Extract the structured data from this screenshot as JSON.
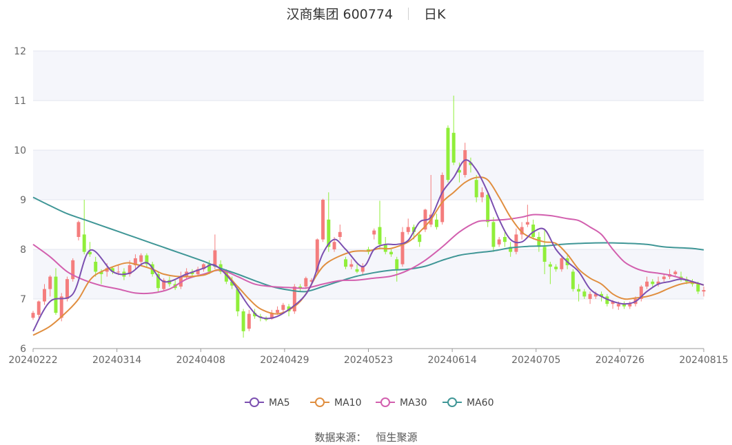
{
  "header": {
    "title": "汉商集团 600774",
    "period": "日K"
  },
  "source": {
    "label": "数据来源：",
    "provider": "恒生聚源"
  },
  "colors": {
    "up": "#f47d7d",
    "down": "#90ee3a",
    "ma5": "#7b4fb0",
    "ma10": "#e08e3f",
    "ma30": "#d25fae",
    "ma60": "#3f9696",
    "band": "#f5f6fb",
    "grid": "#e3e6ef",
    "axis": "#666666"
  },
  "chart_data": {
    "type": "candlestick",
    "ylim": [
      6,
      12
    ],
    "yticks": [
      "6",
      "7",
      "8",
      "9",
      "10",
      "11",
      "12"
    ],
    "date_labels": [
      "20240222",
      "20240314",
      "20240408",
      "20240429",
      "20240523",
      "20240614",
      "20240705",
      "20240726",
      "20240815"
    ],
    "legend": [
      {
        "key": "ma5",
        "label": "MA5"
      },
      {
        "key": "ma10",
        "label": "MA10"
      },
      {
        "key": "ma30",
        "label": "MA30"
      },
      {
        "key": "ma60",
        "label": "MA60"
      }
    ],
    "candles": [
      [
        6.62,
        6.72,
        6.58,
        6.76
      ],
      [
        6.68,
        6.95,
        6.62,
        6.97
      ],
      [
        6.95,
        7.2,
        6.88,
        7.3
      ],
      [
        7.2,
        7.45,
        7.05,
        7.48
      ],
      [
        7.45,
        6.72,
        6.68,
        7.62
      ],
      [
        6.62,
        7.05,
        6.55,
        7.12
      ],
      [
        7.0,
        7.4,
        6.95,
        7.45
      ],
      [
        7.4,
        7.78,
        7.35,
        7.82
      ],
      [
        8.25,
        8.55,
        8.18,
        8.58
      ],
      [
        8.3,
        7.95,
        7.9,
        9.0
      ],
      [
        7.95,
        7.9,
        7.85,
        8.15
      ],
      [
        7.75,
        7.55,
        7.45,
        7.85
      ],
      [
        7.55,
        7.5,
        7.3,
        7.6
      ],
      [
        7.55,
        7.62,
        7.45,
        7.72
      ],
      [
        7.62,
        7.55,
        7.5,
        7.65
      ],
      [
        7.55,
        7.55,
        7.48,
        7.68
      ],
      [
        7.55,
        7.45,
        7.38,
        7.62
      ],
      [
        7.5,
        7.68,
        7.45,
        7.78
      ],
      [
        7.68,
        7.82,
        7.6,
        7.9
      ],
      [
        7.75,
        7.88,
        7.7,
        7.92
      ],
      [
        7.88,
        7.7,
        7.65,
        7.92
      ],
      [
        7.7,
        7.5,
        7.45,
        7.75
      ],
      [
        7.5,
        7.22,
        7.15,
        7.55
      ],
      [
        7.2,
        7.38,
        7.15,
        7.42
      ],
      [
        7.38,
        7.3,
        7.25,
        7.45
      ],
      [
        7.3,
        7.22,
        7.18,
        7.38
      ],
      [
        7.25,
        7.45,
        7.2,
        7.55
      ],
      [
        7.45,
        7.55,
        7.4,
        7.62
      ],
      [
        7.55,
        7.5,
        7.45,
        7.6
      ],
      [
        7.5,
        7.6,
        7.45,
        7.65
      ],
      [
        7.6,
        7.7,
        7.55,
        7.72
      ],
      [
        7.7,
        7.55,
        7.5,
        7.78
      ],
      [
        7.65,
        7.98,
        7.6,
        8.3
      ],
      [
        7.7,
        7.55,
        7.5,
        7.78
      ],
      [
        7.55,
        7.35,
        7.3,
        7.6
      ],
      [
        7.35,
        7.27,
        7.2,
        7.45
      ],
      [
        7.2,
        6.75,
        6.65,
        7.25
      ],
      [
        6.75,
        6.35,
        6.22,
        6.8
      ],
      [
        6.4,
        6.7,
        6.35,
        6.78
      ],
      [
        6.72,
        6.65,
        6.6,
        6.8
      ],
      [
        6.65,
        6.62,
        6.55,
        6.7
      ],
      [
        6.62,
        6.58,
        6.55,
        6.65
      ],
      [
        6.6,
        6.72,
        6.58,
        6.78
      ],
      [
        6.72,
        6.78,
        6.68,
        6.85
      ],
      [
        6.78,
        6.88,
        6.72,
        6.92
      ],
      [
        6.85,
        6.75,
        6.65,
        6.9
      ],
      [
        6.75,
        7.25,
        6.7,
        7.3
      ],
      [
        7.25,
        7.22,
        7.15,
        7.3
      ],
      [
        7.25,
        7.42,
        7.2,
        7.45
      ],
      [
        7.35,
        7.38,
        7.3,
        7.42
      ],
      [
        7.55,
        8.2,
        7.5,
        8.22
      ],
      [
        8.2,
        9.0,
        8.15,
        9.02
      ],
      [
        8.6,
        8.05,
        7.95,
        9.15
      ],
      [
        8.0,
        8.15,
        7.95,
        8.25
      ],
      [
        8.25,
        8.35,
        8.18,
        8.5
      ],
      [
        7.8,
        7.65,
        7.6,
        7.85
      ],
      [
        7.65,
        7.7,
        7.6,
        7.8
      ],
      [
        7.6,
        7.55,
        7.52,
        7.7
      ],
      [
        7.55,
        7.65,
        7.5,
        7.72
      ],
      [
        8.0,
        7.95,
        7.9,
        8.05
      ],
      [
        8.3,
        8.38,
        8.2,
        8.42
      ],
      [
        8.45,
        8.1,
        8.0,
        8.98
      ],
      [
        8.1,
        7.95,
        7.9,
        8.25
      ],
      [
        7.95,
        7.9,
        7.85,
        8.0
      ],
      [
        7.8,
        7.6,
        7.35,
        7.85
      ],
      [
        7.7,
        8.35,
        7.65,
        8.45
      ],
      [
        8.35,
        8.45,
        8.3,
        8.62
      ],
      [
        8.45,
        8.35,
        8.2,
        8.5
      ],
      [
        8.3,
        8.15,
        8.05,
        8.35
      ],
      [
        8.4,
        8.8,
        8.35,
        8.82
      ],
      [
        8.5,
        8.7,
        8.45,
        9.5
      ],
      [
        8.6,
        8.45,
        8.4,
        8.72
      ],
      [
        8.55,
        9.5,
        8.5,
        9.55
      ],
      [
        10.45,
        9.4,
        9.35,
        10.5
      ],
      [
        10.35,
        9.75,
        9.7,
        11.1
      ],
      [
        9.6,
        9.55,
        9.35,
        9.75
      ],
      [
        9.5,
        10.0,
        9.45,
        10.15
      ],
      [
        9.75,
        9.7,
        9.55,
        9.85
      ],
      [
        9.4,
        9.05,
        8.95,
        9.5
      ],
      [
        9.05,
        9.15,
        8.95,
        9.25
      ],
      [
        9.1,
        8.55,
        8.45,
        9.15
      ],
      [
        8.55,
        8.05,
        7.95,
        8.65
      ],
      [
        8.1,
        8.2,
        8.05,
        8.25
      ],
      [
        8.25,
        8.15,
        8.05,
        8.35
      ],
      [
        8.05,
        7.95,
        7.85,
        8.15
      ],
      [
        7.95,
        8.3,
        7.9,
        8.42
      ],
      [
        8.3,
        8.45,
        8.2,
        8.55
      ],
      [
        8.5,
        8.55,
        8.45,
        8.9
      ],
      [
        8.5,
        8.25,
        8.2,
        8.6
      ],
      [
        8.25,
        8.05,
        7.95,
        8.35
      ],
      [
        8.05,
        7.75,
        7.5,
        8.4
      ],
      [
        7.7,
        7.65,
        7.3,
        7.75
      ],
      [
        7.65,
        7.6,
        7.55,
        7.7
      ],
      [
        7.6,
        7.82,
        7.55,
        7.85
      ],
      [
        7.82,
        7.68,
        7.6,
        7.88
      ],
      [
        7.55,
        7.2,
        7.15,
        7.6
      ],
      [
        7.2,
        7.15,
        6.95,
        7.3
      ],
      [
        7.15,
        7.05,
        7.0,
        7.2
      ],
      [
        7.0,
        7.1,
        6.9,
        7.15
      ],
      [
        7.05,
        7.1,
        7.0,
        7.15
      ],
      [
        7.1,
        7.05,
        6.95,
        7.15
      ],
      [
        7.05,
        6.9,
        6.85,
        7.1
      ],
      [
        6.9,
        6.95,
        6.8,
        6.98
      ],
      [
        6.85,
        6.9,
        6.78,
        6.95
      ],
      [
        6.9,
        6.85,
        6.8,
        6.95
      ],
      [
        6.85,
        6.9,
        6.8,
        6.95
      ],
      [
        6.9,
        7.0,
        6.85,
        7.05
      ],
      [
        7.0,
        7.25,
        6.95,
        7.28
      ],
      [
        7.25,
        7.35,
        7.2,
        7.45
      ],
      [
        7.35,
        7.3,
        7.25,
        7.4
      ],
      [
        7.3,
        7.35,
        7.25,
        7.45
      ],
      [
        7.4,
        7.45,
        7.35,
        7.5
      ],
      [
        7.45,
        7.5,
        7.4,
        7.6
      ],
      [
        7.5,
        7.55,
        7.45,
        7.58
      ],
      [
        7.45,
        7.4,
        7.35,
        7.55
      ],
      [
        7.4,
        7.35,
        7.3,
        7.45
      ],
      [
        7.35,
        7.3,
        7.25,
        7.4
      ],
      [
        7.3,
        7.15,
        7.1,
        7.35
      ],
      [
        7.15,
        7.18,
        7.05,
        7.25
      ]
    ],
    "ma5": [
      [
        0,
        6.35
      ],
      [
        3,
        6.95
      ],
      [
        7,
        7.1
      ],
      [
        10,
        7.98
      ],
      [
        14,
        7.55
      ],
      [
        17,
        7.52
      ],
      [
        20,
        7.73
      ],
      [
        23,
        7.35
      ],
      [
        27,
        7.5
      ],
      [
        30,
        7.62
      ],
      [
        32,
        7.68
      ],
      [
        35,
        7.35
      ],
      [
        38,
        6.85
      ],
      [
        40,
        6.63
      ],
      [
        43,
        6.65
      ],
      [
        47,
        6.97
      ],
      [
        49,
        7.3
      ],
      [
        51,
        7.92
      ],
      [
        53,
        8.2
      ],
      [
        55,
        8.0
      ],
      [
        58,
        7.65
      ],
      [
        60,
        8.0
      ],
      [
        62,
        8.1
      ],
      [
        64,
        8.1
      ],
      [
        66,
        8.18
      ],
      [
        68,
        8.55
      ],
      [
        70,
        8.65
      ],
      [
        72,
        9.15
      ],
      [
        74,
        9.45
      ],
      [
        76,
        9.8
      ],
      [
        78,
        9.6
      ],
      [
        80,
        9.15
      ],
      [
        82,
        8.6
      ],
      [
        84,
        8.2
      ],
      [
        86,
        8.15
      ],
      [
        88,
        8.35
      ],
      [
        90,
        8.4
      ],
      [
        92,
        8.0
      ],
      [
        94,
        7.75
      ],
      [
        96,
        7.55
      ],
      [
        98,
        7.2
      ],
      [
        100,
        7.05
      ],
      [
        102,
        6.95
      ],
      [
        104,
        6.9
      ],
      [
        106,
        6.95
      ],
      [
        108,
        7.15
      ],
      [
        110,
        7.3
      ],
      [
        112,
        7.35
      ],
      [
        114,
        7.4
      ],
      [
        116,
        7.35
      ],
      [
        118,
        7.28
      ]
    ],
    "ma10": [
      [
        0,
        6.27
      ],
      [
        3,
        6.45
      ],
      [
        6,
        6.75
      ],
      [
        8,
        7.0
      ],
      [
        10,
        7.38
      ],
      [
        12,
        7.55
      ],
      [
        16,
        7.72
      ],
      [
        18,
        7.7
      ],
      [
        21,
        7.6
      ],
      [
        23,
        7.5
      ],
      [
        26,
        7.45
      ],
      [
        30,
        7.48
      ],
      [
        33,
        7.58
      ],
      [
        36,
        7.25
      ],
      [
        38,
        7.0
      ],
      [
        40,
        6.8
      ],
      [
        43,
        6.7
      ],
      [
        46,
        6.85
      ],
      [
        48,
        7.1
      ],
      [
        50,
        7.5
      ],
      [
        52,
        7.75
      ],
      [
        56,
        7.95
      ],
      [
        59,
        7.97
      ],
      [
        61,
        8.02
      ],
      [
        63,
        8.02
      ],
      [
        66,
        8.15
      ],
      [
        68,
        8.35
      ],
      [
        70,
        8.6
      ],
      [
        72,
        8.95
      ],
      [
        74,
        9.15
      ],
      [
        76,
        9.35
      ],
      [
        78,
        9.45
      ],
      [
        80,
        9.4
      ],
      [
        82,
        9.05
      ],
      [
        84,
        8.65
      ],
      [
        86,
        8.35
      ],
      [
        88,
        8.22
      ],
      [
        90,
        8.15
      ],
      [
        92,
        8.12
      ],
      [
        94,
        7.9
      ],
      [
        96,
        7.6
      ],
      [
        98,
        7.42
      ],
      [
        100,
        7.3
      ],
      [
        102,
        7.1
      ],
      [
        104,
        7.0
      ],
      [
        106,
        7.02
      ],
      [
        108,
        7.05
      ],
      [
        110,
        7.12
      ],
      [
        112,
        7.22
      ],
      [
        114,
        7.3
      ],
      [
        116,
        7.33
      ],
      [
        118,
        7.28
      ]
    ],
    "ma30": [
      [
        0,
        8.1
      ],
      [
        3,
        7.85
      ],
      [
        6,
        7.55
      ],
      [
        9,
        7.38
      ],
      [
        12,
        7.27
      ],
      [
        15,
        7.2
      ],
      [
        18,
        7.12
      ],
      [
        21,
        7.12
      ],
      [
        24,
        7.2
      ],
      [
        27,
        7.4
      ],
      [
        30,
        7.5
      ],
      [
        33,
        7.58
      ],
      [
        36,
        7.45
      ],
      [
        39,
        7.3
      ],
      [
        42,
        7.25
      ],
      [
        45,
        7.23
      ],
      [
        48,
        7.22
      ],
      [
        51,
        7.3
      ],
      [
        54,
        7.37
      ],
      [
        57,
        7.38
      ],
      [
        60,
        7.42
      ],
      [
        63,
        7.46
      ],
      [
        66,
        7.58
      ],
      [
        69,
        7.78
      ],
      [
        72,
        8.05
      ],
      [
        75,
        8.35
      ],
      [
        78,
        8.55
      ],
      [
        80,
        8.58
      ],
      [
        83,
        8.6
      ],
      [
        86,
        8.65
      ],
      [
        88,
        8.7
      ],
      [
        91,
        8.68
      ],
      [
        94,
        8.62
      ],
      [
        96,
        8.58
      ],
      [
        98,
        8.45
      ],
      [
        100,
        8.3
      ],
      [
        102,
        8.0
      ],
      [
        104,
        7.75
      ],
      [
        106,
        7.62
      ],
      [
        108,
        7.55
      ],
      [
        110,
        7.52
      ],
      [
        112,
        7.48
      ],
      [
        114,
        7.42
      ],
      [
        116,
        7.35
      ],
      [
        118,
        7.28
      ]
    ],
    "ma60": [
      [
        0,
        9.05
      ],
      [
        3,
        8.88
      ],
      [
        6,
        8.72
      ],
      [
        9,
        8.6
      ],
      [
        12,
        8.48
      ],
      [
        15,
        8.36
      ],
      [
        18,
        8.24
      ],
      [
        21,
        8.12
      ],
      [
        24,
        8.0
      ],
      [
        27,
        7.88
      ],
      [
        30,
        7.76
      ],
      [
        33,
        7.62
      ],
      [
        36,
        7.5
      ],
      [
        39,
        7.37
      ],
      [
        42,
        7.25
      ],
      [
        45,
        7.18
      ],
      [
        48,
        7.15
      ],
      [
        51,
        7.25
      ],
      [
        54,
        7.36
      ],
      [
        57,
        7.46
      ],
      [
        60,
        7.53
      ],
      [
        63,
        7.58
      ],
      [
        66,
        7.6
      ],
      [
        69,
        7.66
      ],
      [
        72,
        7.78
      ],
      [
        75,
        7.88
      ],
      [
        78,
        7.93
      ],
      [
        81,
        7.97
      ],
      [
        84,
        8.03
      ],
      [
        87,
        8.06
      ],
      [
        90,
        8.07
      ],
      [
        93,
        8.1
      ],
      [
        96,
        8.12
      ],
      [
        99,
        8.13
      ],
      [
        102,
        8.13
      ],
      [
        105,
        8.12
      ],
      [
        108,
        8.1
      ],
      [
        111,
        8.05
      ],
      [
        114,
        8.03
      ],
      [
        116,
        8.02
      ],
      [
        118,
        7.99
      ]
    ]
  }
}
